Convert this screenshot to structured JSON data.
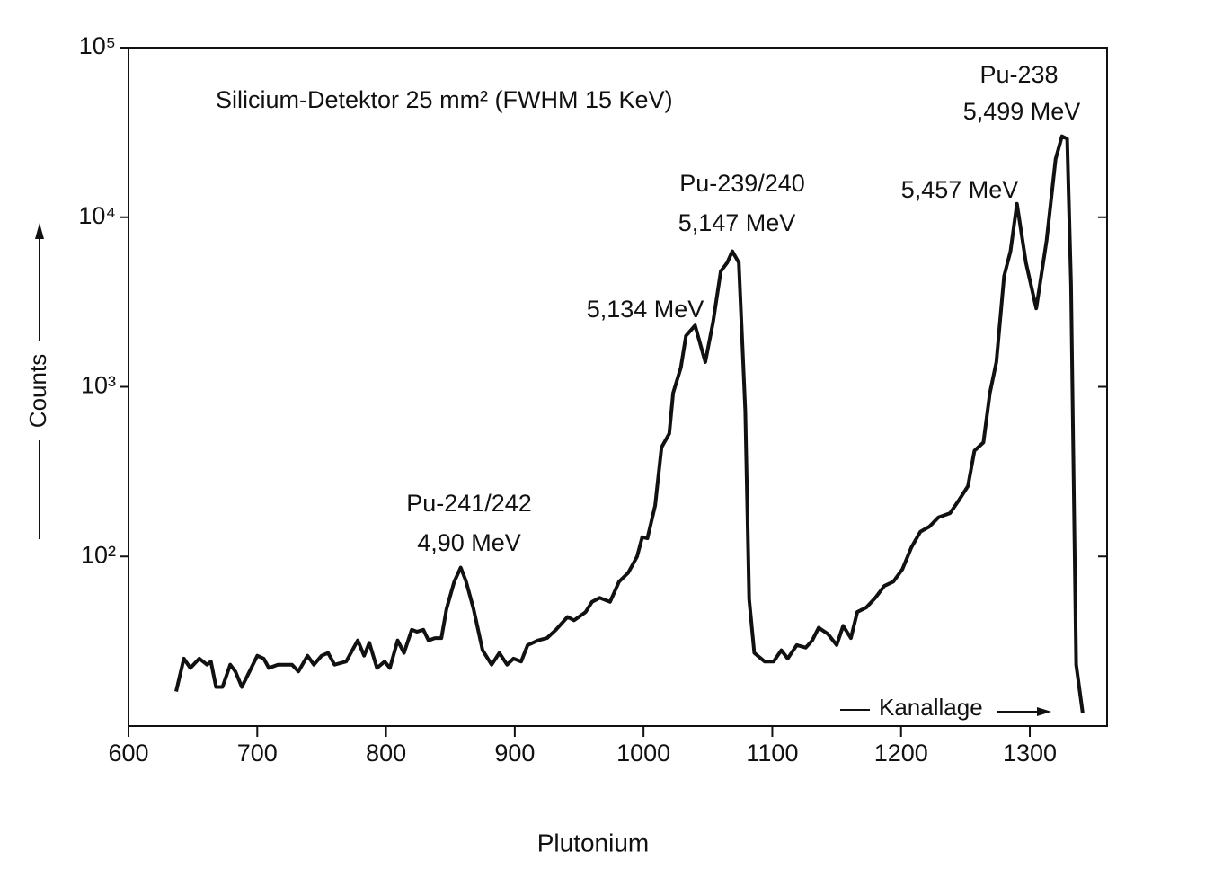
{
  "chart_data": {
    "type": "line",
    "title": "Silicium-Detektor 25 mm² (FWHM 15 KeV)",
    "ylabel": "Counts",
    "xlabel": "Kanallage",
    "caption": "Plutonium",
    "yscale": "log",
    "grid": false,
    "color": "#111111",
    "xlim": [
      600,
      1360
    ],
    "xticks": [
      600,
      700,
      800,
      900,
      1000,
      1100,
      1200,
      1300
    ],
    "ylim": [
      10,
      100000
    ],
    "yticks": [
      {
        "value": 100,
        "label": "10²"
      },
      {
        "value": 1000,
        "label": "10³"
      },
      {
        "value": 10000,
        "label": "10⁴"
      },
      {
        "value": 100000,
        "label": "10⁵"
      }
    ],
    "annotations": [
      "Pu-241/242",
      "4,90 MeV",
      "5,134 MeV",
      "Pu-239/240",
      "5,147 MeV",
      "5,457 MeV",
      "Pu-238",
      "5,499 MeV"
    ],
    "x": [
      637,
      643,
      648,
      655,
      661,
      664,
      668,
      673,
      679,
      683,
      688,
      694,
      700,
      705,
      709,
      716,
      722,
      727,
      732,
      739,
      744,
      750,
      755,
      760,
      769,
      778,
      783,
      787,
      793,
      799,
      803,
      809,
      814,
      820,
      824,
      829,
      833,
      838,
      843,
      847,
      853,
      858,
      862,
      868,
      875,
      882,
      888,
      894,
      899,
      905,
      910,
      918,
      925,
      932,
      941,
      946,
      955,
      960,
      966,
      974,
      981,
      988,
      995,
      999,
      1003,
      1009,
      1014,
      1020,
      1023,
      1029,
      1033,
      1040,
      1048,
      1054,
      1060,
      1065,
      1069,
      1074,
      1079,
      1082,
      1086,
      1094,
      1101,
      1107,
      1112,
      1119,
      1126,
      1131,
      1136,
      1143,
      1150,
      1155,
      1161,
      1166,
      1173,
      1180,
      1187,
      1194,
      1201,
      1208,
      1215,
      1222,
      1229,
      1238,
      1245,
      1252,
      1257,
      1264,
      1269,
      1274,
      1280,
      1285,
      1290,
      1297,
      1305,
      1313,
      1320,
      1325,
      1329,
      1332,
      1336,
      1341
    ],
    "values": [
      16,
      25,
      22,
      25,
      23,
      24,
      17,
      17,
      23,
      21,
      17,
      21,
      26,
      25,
      22,
      23,
      23,
      23,
      21,
      26,
      23,
      26,
      27,
      23,
      24,
      32,
      26,
      31,
      22,
      24,
      22,
      32,
      27,
      37,
      36,
      37,
      32,
      33,
      33,
      49,
      71,
      86,
      72,
      49,
      28,
      23,
      27,
      23,
      25,
      24,
      30,
      32,
      33,
      37,
      44,
      42,
      47,
      54,
      57,
      54,
      71,
      80,
      100,
      130,
      128,
      200,
      440,
      530,
      920,
      1300,
      2000,
      2300,
      1400,
      2400,
      4800,
      5400,
      6300,
      5400,
      720,
      56,
      27,
      24,
      24,
      28,
      25,
      30,
      29,
      32,
      38,
      35,
      30,
      39,
      33,
      47,
      50,
      57,
      67,
      71,
      84,
      113,
      140,
      150,
      170,
      180,
      215,
      260,
      420,
      470,
      920,
      1400,
      4500,
      6300,
      12000,
      5400,
      2900,
      7300,
      22000,
      30000,
      29000,
      4000,
      23,
      12
    ]
  }
}
